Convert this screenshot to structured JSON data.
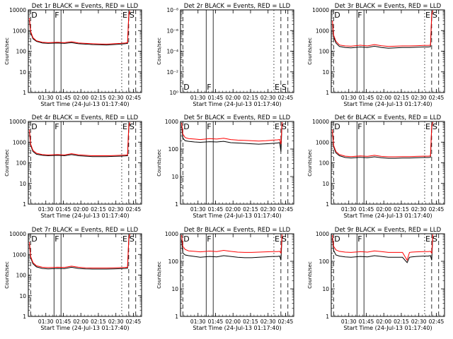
{
  "figure": {
    "xlabel": "Start Time (24-Jul-13 01:17:40)",
    "ylabel": "Counts/sec",
    "xticks": [
      "01:30",
      "01:45",
      "02:00",
      "02:15",
      "02:30",
      "02:45"
    ],
    "xrange_minutes": [
      75,
      172
    ],
    "tick_minutes": [
      90,
      105,
      120,
      135,
      150,
      165
    ],
    "markers": [
      {
        "label": "D",
        "minute": 77,
        "style": "dashed"
      },
      {
        "label": "F",
        "minute": 97,
        "style": "solid"
      },
      {
        "label": "E",
        "minute": 155,
        "style": "dotted"
      },
      {
        "label": "S",
        "minute": 161,
        "style": "dashed"
      }
    ],
    "extra_lines": [
      {
        "minute": 103,
        "style": "solid"
      },
      {
        "minute": 167,
        "style": "dashed"
      }
    ],
    "colors": {
      "events": "#000000",
      "lld": "#ff0000"
    }
  },
  "chart_data": [
    {
      "type": "line",
      "title": "Det 1r BLACK = Events, RED = LLD",
      "yscale": "log",
      "ylim": [
        1,
        10000
      ],
      "yticks": [
        "1",
        "10",
        "100",
        "1000",
        "10000"
      ],
      "series": [
        {
          "name": "Events",
          "color": "#000000",
          "x": [
            76,
            77,
            79,
            82,
            87,
            92,
            100,
            106,
            112,
            118,
            124,
            130,
            136,
            142,
            148,
            154,
            158,
            160,
            161,
            162
          ],
          "y": [
            3000,
            800,
            400,
            300,
            250,
            240,
            250,
            240,
            260,
            230,
            220,
            210,
            205,
            200,
            210,
            220,
            230,
            240,
            5000,
            8000
          ]
        },
        {
          "name": "LLD",
          "color": "#ff0000",
          "x": [
            76,
            77,
            79,
            82,
            87,
            92,
            100,
            106,
            112,
            118,
            124,
            130,
            136,
            142,
            148,
            154,
            158,
            160,
            161,
            162
          ],
          "y": [
            4000,
            900,
            450,
            320,
            270,
            260,
            270,
            260,
            290,
            250,
            240,
            230,
            225,
            220,
            230,
            240,
            250,
            260,
            6000,
            9000
          ]
        }
      ]
    },
    {
      "type": "line",
      "title": "Det 2r BLACK = Events, RED = LLD",
      "yscale": "log",
      "ylim": [
        1,
        1e-08
      ],
      "yticks": [
        "10⁰",
        "10⁻²",
        "10⁻⁴",
        "10⁻⁶",
        "10⁻⁸"
      ],
      "series": []
    },
    {
      "type": "line",
      "title": "Det 3r BLACK = Events, RED = LLD",
      "yscale": "log",
      "ylim": [
        1,
        10000
      ],
      "yticks": [
        "1",
        "10",
        "100",
        "1000",
        "10000"
      ],
      "series": [
        {
          "name": "Events",
          "color": "#000000",
          "x": [
            76,
            77,
            79,
            82,
            87,
            92,
            100,
            106,
            112,
            118,
            124,
            130,
            136,
            142,
            148,
            154,
            158,
            160,
            161,
            162
          ],
          "y": [
            2000,
            500,
            250,
            170,
            150,
            145,
            160,
            150,
            175,
            150,
            140,
            145,
            150,
            150,
            155,
            160,
            160,
            165,
            5000,
            9000
          ]
        },
        {
          "name": "LLD",
          "color": "#ff0000",
          "x": [
            76,
            77,
            79,
            82,
            87,
            92,
            100,
            106,
            112,
            118,
            124,
            130,
            136,
            142,
            148,
            154,
            158,
            160,
            161,
            162
          ],
          "y": [
            3000,
            600,
            300,
            200,
            180,
            175,
            195,
            180,
            210,
            185,
            170,
            175,
            180,
            180,
            185,
            190,
            190,
            195,
            6000,
            9500
          ]
        }
      ]
    },
    {
      "type": "line",
      "title": "Det 4r BLACK = Events, RED = LLD",
      "yscale": "log",
      "ylim": [
        1,
        10000
      ],
      "yticks": [
        "1",
        "10",
        "100",
        "1000",
        "10000"
      ],
      "series": [
        {
          "name": "Events",
          "color": "#000000",
          "x": [
            76,
            77,
            79,
            82,
            87,
            92,
            100,
            106,
            112,
            118,
            124,
            130,
            136,
            142,
            148,
            154,
            158,
            160,
            161,
            162
          ],
          "y": [
            3000,
            700,
            350,
            260,
            230,
            220,
            230,
            220,
            250,
            220,
            210,
            200,
            200,
            200,
            205,
            210,
            215,
            220,
            5000,
            8000
          ]
        },
        {
          "name": "LLD",
          "color": "#ff0000",
          "x": [
            76,
            77,
            79,
            82,
            87,
            92,
            100,
            106,
            112,
            118,
            124,
            130,
            136,
            142,
            148,
            154,
            158,
            160,
            161,
            162
          ],
          "y": [
            4000,
            800,
            400,
            290,
            250,
            240,
            250,
            240,
            275,
            245,
            230,
            220,
            220,
            220,
            225,
            230,
            235,
            240,
            6000,
            9000
          ]
        }
      ]
    },
    {
      "type": "line",
      "title": "Det 5r BLACK = Events, RED = LLD",
      "yscale": "log",
      "ylim": [
        1,
        1000
      ],
      "yticks": [
        "1",
        "10",
        "100",
        "1000"
      ],
      "series": [
        {
          "name": "Events",
          "color": "#000000",
          "x": [
            76,
            77,
            79,
            82,
            87,
            92,
            100,
            106,
            112,
            118,
            124,
            130,
            136,
            142,
            148,
            154,
            158,
            160,
            161,
            162
          ],
          "y": [
            700,
            250,
            200,
            190,
            180,
            175,
            185,
            180,
            190,
            170,
            165,
            160,
            155,
            150,
            155,
            160,
            165,
            170,
            80,
            900
          ]
        },
        {
          "name": "LLD",
          "color": "#ff0000",
          "x": [
            76,
            77,
            79,
            82,
            87,
            92,
            100,
            106,
            112,
            118,
            124,
            130,
            136,
            142,
            148,
            154,
            158,
            160,
            161,
            162
          ],
          "y": [
            900,
            350,
            260,
            240,
            230,
            220,
            240,
            230,
            245,
            220,
            210,
            205,
            200,
            195,
            200,
            210,
            215,
            220,
            150,
            950
          ]
        }
      ]
    },
    {
      "type": "line",
      "title": "Det 6r BLACK = Events, RED = LLD",
      "yscale": "log",
      "ylim": [
        1,
        10000
      ],
      "yticks": [
        "1",
        "10",
        "100",
        "1000",
        "10000"
      ],
      "series": [
        {
          "name": "Events",
          "color": "#000000",
          "x": [
            76,
            77,
            79,
            82,
            87,
            92,
            100,
            106,
            112,
            118,
            124,
            130,
            136,
            142,
            148,
            154,
            158,
            160,
            161,
            162
          ],
          "y": [
            3000,
            600,
            300,
            220,
            180,
            170,
            185,
            175,
            195,
            175,
            165,
            165,
            170,
            170,
            175,
            180,
            180,
            185,
            5000,
            9000
          ]
        },
        {
          "name": "LLD",
          "color": "#ff0000",
          "x": [
            76,
            77,
            79,
            82,
            87,
            92,
            100,
            106,
            112,
            118,
            124,
            130,
            136,
            142,
            148,
            154,
            158,
            160,
            161,
            162
          ],
          "y": [
            4000,
            700,
            350,
            250,
            210,
            200,
            215,
            205,
            230,
            205,
            195,
            195,
            200,
            200,
            205,
            210,
            210,
            215,
            6000,
            9500
          ]
        }
      ]
    },
    {
      "type": "line",
      "title": "Det 7r BLACK = Events, RED = LLD",
      "yscale": "log",
      "ylim": [
        1,
        10000
      ],
      "yticks": [
        "1",
        "10",
        "100",
        "1000",
        "10000"
      ],
      "series": [
        {
          "name": "Events",
          "color": "#000000",
          "x": [
            76,
            77,
            79,
            82,
            87,
            92,
            100,
            106,
            112,
            118,
            124,
            130,
            136,
            142,
            148,
            154,
            158,
            160,
            161,
            162
          ],
          "y": [
            3000,
            700,
            350,
            250,
            210,
            200,
            210,
            205,
            240,
            210,
            200,
            195,
            195,
            195,
            200,
            205,
            210,
            215,
            5000,
            9000
          ]
        },
        {
          "name": "LLD",
          "color": "#ff0000",
          "x": [
            76,
            77,
            79,
            82,
            87,
            92,
            100,
            106,
            112,
            118,
            124,
            130,
            136,
            142,
            148,
            154,
            158,
            160,
            161,
            162
          ],
          "y": [
            4000,
            800,
            400,
            280,
            240,
            230,
            240,
            235,
            270,
            240,
            225,
            220,
            220,
            220,
            225,
            230,
            235,
            240,
            6000,
            9500
          ]
        }
      ]
    },
    {
      "type": "line",
      "title": "Det 8r BLACK = Events, RED = LLD",
      "yscale": "log",
      "ylim": [
        1,
        1000
      ],
      "yticks": [
        "1",
        "10",
        "100",
        "1000"
      ],
      "series": [
        {
          "name": "Events",
          "color": "#000000",
          "x": [
            76,
            77,
            79,
            82,
            87,
            92,
            100,
            106,
            112,
            118,
            124,
            130,
            136,
            142,
            148,
            154,
            158,
            160,
            161,
            162
          ],
          "y": [
            600,
            200,
            170,
            160,
            150,
            140,
            150,
            145,
            160,
            150,
            140,
            135,
            135,
            140,
            145,
            150,
            150,
            155,
            110,
            800
          ]
        },
        {
          "name": "LLD",
          "color": "#ff0000",
          "x": [
            76,
            77,
            79,
            82,
            87,
            92,
            100,
            106,
            112,
            118,
            124,
            130,
            136,
            142,
            148,
            154,
            158,
            160,
            161,
            162
          ],
          "y": [
            900,
            350,
            270,
            240,
            230,
            220,
            235,
            225,
            250,
            230,
            215,
            210,
            210,
            215,
            220,
            225,
            225,
            230,
            200,
            950
          ]
        }
      ]
    },
    {
      "type": "line",
      "title": "Det 9r BLACK = Events, RED = LLD",
      "yscale": "log",
      "ylim": [
        1,
        1000
      ],
      "yticks": [
        "1",
        "10",
        "100",
        "1000"
      ],
      "series": [
        {
          "name": "Events",
          "color": "#000000",
          "x": [
            76,
            77,
            79,
            82,
            87,
            92,
            100,
            106,
            112,
            118,
            124,
            130,
            136,
            140,
            142,
            144,
            148,
            154,
            158,
            160,
            161,
            162
          ],
          "y": [
            700,
            250,
            170,
            155,
            145,
            140,
            150,
            145,
            160,
            150,
            140,
            140,
            140,
            90,
            140,
            145,
            150,
            155,
            155,
            160,
            110,
            900
          ]
        },
        {
          "name": "LLD",
          "color": "#ff0000",
          "x": [
            76,
            77,
            79,
            82,
            87,
            92,
            100,
            106,
            112,
            118,
            124,
            130,
            136,
            140,
            142,
            144,
            148,
            154,
            158,
            160,
            161,
            162
          ],
          "y": [
            900,
            350,
            260,
            230,
            215,
            210,
            225,
            215,
            240,
            225,
            210,
            210,
            210,
            110,
            210,
            215,
            220,
            225,
            225,
            230,
            200,
            950
          ]
        }
      ]
    }
  ]
}
